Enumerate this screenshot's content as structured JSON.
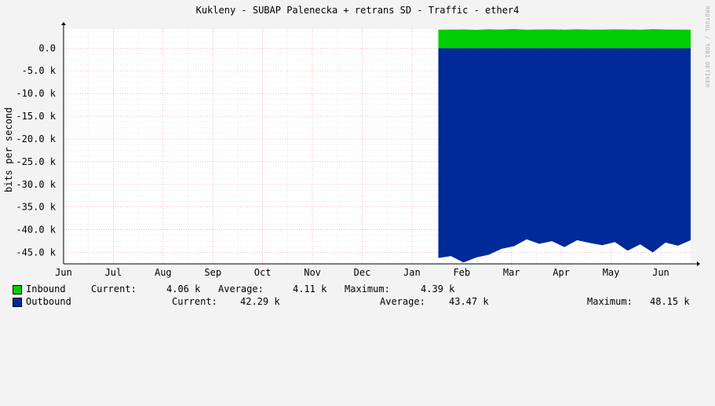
{
  "title": "Kukleny - SUBAP Palenecka + retrans SD - Traffic - ether4",
  "watermark": "RRDTOOL / TOBI OETIKER",
  "colors": {
    "background": "#f3f3f3",
    "plot_background": "#ffffff",
    "grid_major": "#ff9999",
    "grid_minor": "#e0e0e0",
    "inbound": "#00cc00",
    "outbound": "#002a97"
  },
  "chart_data": {
    "type": "area",
    "ylabel": "bits per second",
    "xlabel": "",
    "ylim": [
      -47500,
      4200
    ],
    "yticks": [
      {
        "value": 0,
        "label": "0.0"
      },
      {
        "value": -5000,
        "label": "-5.0 k"
      },
      {
        "value": -10000,
        "label": "-10.0 k"
      },
      {
        "value": -15000,
        "label": "-15.0 k"
      },
      {
        "value": -20000,
        "label": "-20.0 k"
      },
      {
        "value": -25000,
        "label": "-25.0 k"
      },
      {
        "value": -30000,
        "label": "-30.0 k"
      },
      {
        "value": -35000,
        "label": "-35.0 k"
      },
      {
        "value": -40000,
        "label": "-40.0 k"
      },
      {
        "value": -45000,
        "label": "-45.0 k"
      }
    ],
    "xticks": [
      "Jun",
      "Jul",
      "Aug",
      "Sep",
      "Oct",
      "Nov",
      "Dec",
      "Jan",
      "Feb",
      "Mar",
      "Apr",
      "May",
      "Jun"
    ],
    "data_start_month_index": 7.53,
    "x_end_month_index": 12.6,
    "series": [
      {
        "name": "Inbound",
        "values": [
          4060,
          4100,
          4120,
          4050,
          4150,
          4090,
          4200,
          4080,
          4110,
          4130,
          4070,
          4160,
          4100,
          4090,
          4140,
          4110,
          4080,
          4170,
          4120,
          4100,
          4060
        ],
        "current": "4.06 k",
        "average": "4.11 k",
        "maximum": "4.39 k"
      },
      {
        "name": "Outbound",
        "values": [
          -46200,
          -45800,
          -47200,
          -46100,
          -45500,
          -44200,
          -43600,
          -42100,
          -43100,
          -42500,
          -43800,
          -42300,
          -42900,
          -43400,
          -42700,
          -44600,
          -43200,
          -45000,
          -42800,
          -43500,
          -42290
        ],
        "current": "42.29 k",
        "average": "43.47 k",
        "maximum": "48.15 k"
      }
    ]
  },
  "legend": {
    "inbound": {
      "label": "Inbound",
      "current_label": "Current:",
      "current": "4.06 k",
      "average_label": "Average:",
      "average": "4.11 k",
      "maximum_label": "Maximum:",
      "maximum": "4.39 k"
    },
    "outbound": {
      "label": "Outbound",
      "current_label": "Current:",
      "current": "42.29 k",
      "average_label": "Average:",
      "average": "43.47 k",
      "maximum_label": "Maximum:",
      "maximum": "48.15 k"
    }
  }
}
